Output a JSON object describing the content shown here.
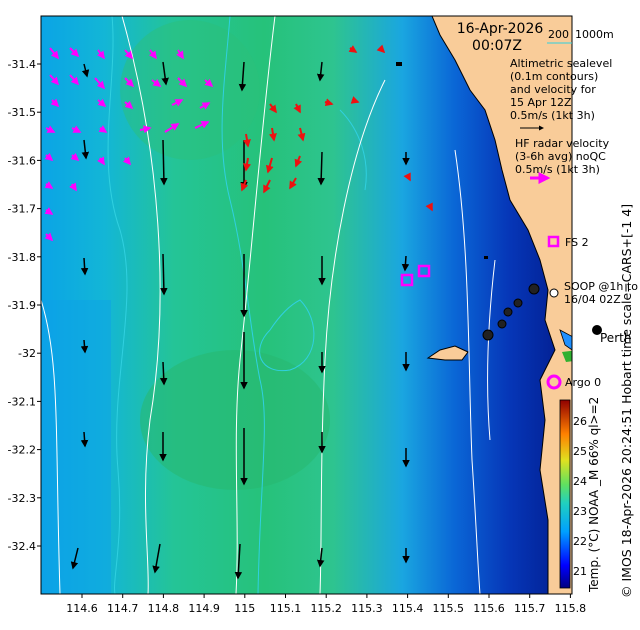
{
  "header": {
    "date": "16-Apr-2026",
    "time": "00:07Z",
    "isobath_shallow": "200",
    "isobath_deep": "1000m"
  },
  "legend": {
    "altimetry_lines": [
      "Altimetric sealevel",
      "(0.1m contours)",
      "and velocity for",
      "15 Apr 12Z",
      "0.5m/s (1kt 3h)"
    ],
    "hf_lines": [
      "HF radar velocity",
      "(3-6h avg) noQC",
      "0.5m/s (1kt 3h)"
    ]
  },
  "labels": {
    "fs2": "FS 2",
    "soop_line1": "SOOP @1h to",
    "soop_line2": "16/04 02Z",
    "perth": "Perth",
    "argo": "Argo 0"
  },
  "axes": {
    "x_ticks": [
      "114.6",
      "114.7",
      "114.8",
      "114.9",
      "115",
      "115.1",
      "115.2",
      "115.3",
      "115.4",
      "115.5",
      "115.6",
      "115.7",
      "115.8"
    ],
    "y_ticks": [
      "-31.4",
      "-31.5",
      "-31.6",
      "-31.7",
      "-31.8",
      "-31.9",
      "-32",
      "-32.1",
      "-32.2",
      "-32.3",
      "-32.4"
    ]
  },
  "colorbar": {
    "ticks": [
      "26",
      "25",
      "24",
      "23",
      "22",
      "21"
    ],
    "label": "Temp. (°C) NOAA _M 66% ql>=2"
  },
  "credit": "© IMOS 18-Apr-2026 20:24:51 Hobart time scale=CARS+[-1 4]",
  "colors": {
    "land": "#f9cc99",
    "altimetry_arrow": "#000000",
    "hf_magenta": "#ff00ff",
    "hf_red": "#ee1111",
    "contour": "#ffffff",
    "isobath": "#30d0e0"
  }
}
